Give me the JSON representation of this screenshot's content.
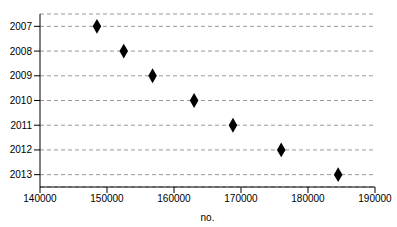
{
  "chart_data": {
    "type": "scatter",
    "orientation": "horizontal",
    "categories": [
      "2007",
      "2008",
      "2009",
      "2010",
      "2011",
      "2012",
      "2013"
    ],
    "values": [
      148500,
      152500,
      156800,
      163000,
      168800,
      176000,
      184500
    ],
    "xlabel": "no.",
    "xlim": [
      140000,
      190000
    ],
    "xticks": [
      140000,
      150000,
      160000,
      170000,
      180000,
      190000
    ],
    "grid": true,
    "color": "#000000",
    "marker": "diamond"
  }
}
